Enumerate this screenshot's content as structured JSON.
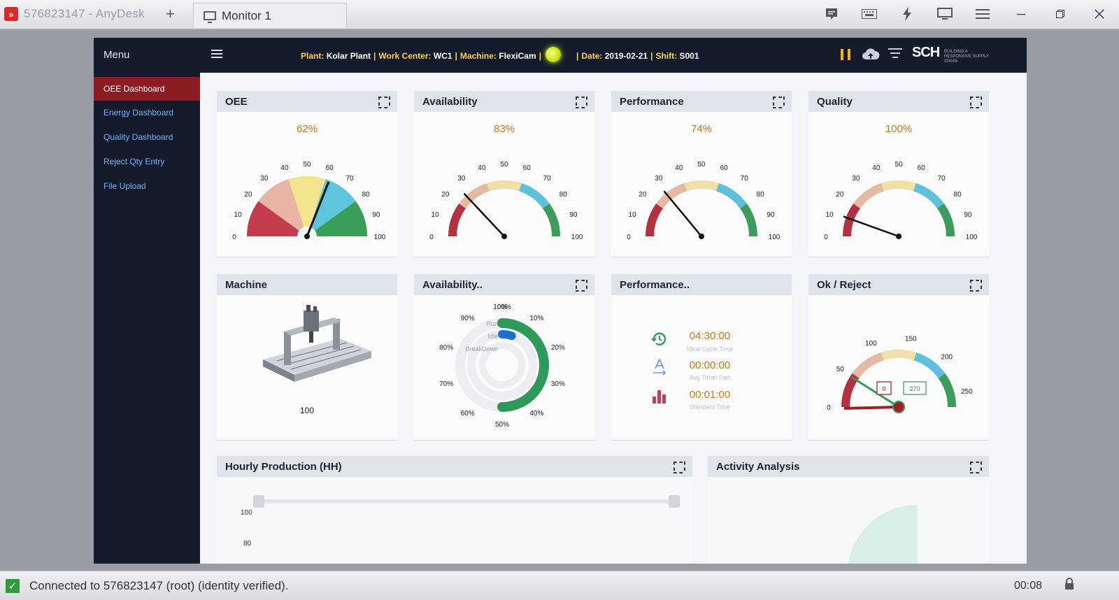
{
  "anydesk": {
    "tab_title": "576823147 - AnyDesk",
    "tab2_label": "Monitor 1",
    "status_text": "Connected to 576823147 (root) (identity verified).",
    "session_time": "00:08"
  },
  "app": {
    "menu_title": "Menu",
    "nav": [
      {
        "label": "OEE Dashboard",
        "active": true
      },
      {
        "label": "Energy Dashboard",
        "active": false
      },
      {
        "label": "Quality Dashboard",
        "active": false
      },
      {
        "label": "Reject Qty Entry",
        "active": false
      },
      {
        "label": "File Upload",
        "active": false
      }
    ],
    "context": {
      "plant_label": "Plant:",
      "plant": "Kolar Plant",
      "wc_label": "Work Center:",
      "wc": "WC1",
      "machine_label": "Machine:",
      "machine": "FlexiCam",
      "date_label": "Date:",
      "date": "2019-02-21",
      "shift_label": "Shift:",
      "shift": "S001",
      "separator": "|"
    },
    "brand": "SCH",
    "brand_sub": "BUILDING A RESPONSIVE SUPPLY CHAIN",
    "colors": {
      "accent": "#c17d12",
      "active_nav": "#8c1c22",
      "sidebar": "#141c2c",
      "status_led": "#c6e600"
    }
  },
  "gauges": [
    {
      "title": "OEE",
      "value_text": "62%",
      "value": 62,
      "style": "filled",
      "ticks": [
        "0",
        "10",
        "20",
        "30",
        "40",
        "50",
        "60",
        "70",
        "80",
        "90",
        "100"
      ]
    },
    {
      "title": "Availability",
      "value_text": "83%",
      "value": 83,
      "style": "arc",
      "needle_value": 26,
      "ticks": [
        "0",
        "10",
        "20",
        "30",
        "40",
        "50",
        "60",
        "70",
        "80",
        "90",
        "100"
      ]
    },
    {
      "title": "Performance",
      "value_text": "74%",
      "value": 74,
      "style": "arc",
      "needle_value": 28,
      "ticks": [
        "0",
        "10",
        "20",
        "30",
        "40",
        "50",
        "60",
        "70",
        "80",
        "90",
        "100"
      ]
    },
    {
      "title": "Quality",
      "value_text": "100%",
      "value": 100,
      "style": "arc",
      "needle_value": 11,
      "ticks": [
        "0",
        "10",
        "20",
        "30",
        "40",
        "50",
        "60",
        "70",
        "80",
        "90",
        "100"
      ]
    }
  ],
  "machine": {
    "title": "Machine",
    "value": "100",
    "image": "cnc-machine"
  },
  "availability2": {
    "title": "Availability..",
    "legend": [
      "Run",
      "Idle",
      "BreakDown"
    ],
    "ticks": [
      "0%",
      "10%",
      "20%",
      "30%",
      "40%",
      "50%",
      "60%",
      "70%",
      "80%",
      "90%",
      "100%"
    ],
    "run_percent": 50,
    "idle_percent": 5
  },
  "performance2": {
    "title": "Performance..",
    "rows": [
      {
        "icon": "history-icon",
        "value": "04:30:00",
        "caption": "Ideal Cycle Time"
      },
      {
        "icon": "text-direction-icon",
        "value": "00:00:00",
        "caption": "Avg Time/ Part"
      },
      {
        "icon": "bar-chart-icon",
        "value": "00:01:00",
        "caption": "Standard Time"
      }
    ]
  },
  "okreject": {
    "title": "Ok / Reject",
    "ticks": [
      "0",
      "50",
      "100",
      "150",
      "200",
      "250"
    ],
    "reject_box": "0",
    "ok_box": "270",
    "max": 270,
    "needle_value": 18
  },
  "hourly": {
    "title": "Hourly Production (HH)",
    "y_ticks": [
      "100",
      "80"
    ]
  },
  "activity": {
    "title": "Activity Analysis"
  }
}
